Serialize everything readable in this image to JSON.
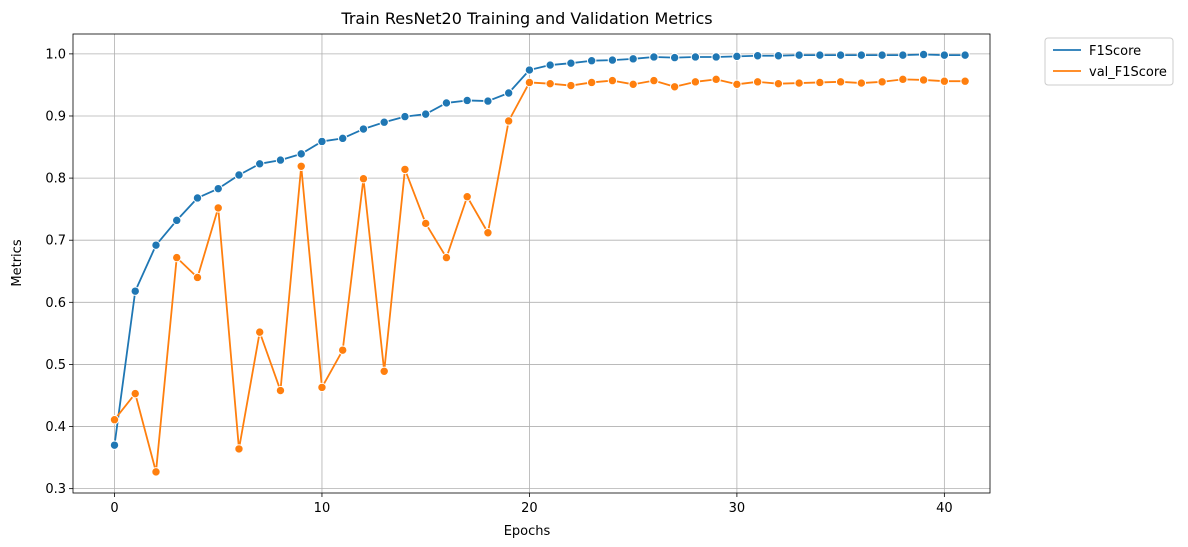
{
  "chart_data": {
    "type": "line",
    "title": "Train ResNet20 Training and Validation Metrics",
    "xlabel": "Epochs",
    "ylabel": "Metrics",
    "xlim": [
      -2,
      42.2
    ],
    "ylim": [
      0.293,
      1.032
    ],
    "xticks": [
      0,
      10,
      20,
      30,
      40
    ],
    "yticks": [
      0.3,
      0.4,
      0.5,
      0.6,
      0.7,
      0.8,
      0.9,
      1.0
    ],
    "grid": true,
    "legend_position": "outside-top-right",
    "x": [
      0,
      1,
      2,
      3,
      4,
      5,
      6,
      7,
      8,
      9,
      10,
      11,
      12,
      13,
      14,
      15,
      16,
      17,
      18,
      19,
      20,
      21,
      22,
      23,
      24,
      25,
      26,
      27,
      28,
      29,
      30,
      31,
      32,
      33,
      34,
      35,
      36,
      37,
      38,
      39,
      40,
      41
    ],
    "series": [
      {
        "name": "F1Score",
        "color": "#1f77b4",
        "marker": "circle",
        "values": [
          0.37,
          0.618,
          0.692,
          0.732,
          0.768,
          0.783,
          0.805,
          0.823,
          0.829,
          0.839,
          0.859,
          0.864,
          0.879,
          0.89,
          0.899,
          0.903,
          0.921,
          0.925,
          0.924,
          0.937,
          0.974,
          0.982,
          0.985,
          0.989,
          0.99,
          0.992,
          0.995,
          0.994,
          0.995,
          0.995,
          0.996,
          0.997,
          0.997,
          0.998,
          0.998,
          0.998,
          0.998,
          0.998,
          0.998,
          0.999,
          0.998,
          0.998
        ]
      },
      {
        "name": "val_F1Score",
        "color": "#ff7f0e",
        "marker": "circle",
        "values": [
          0.411,
          0.453,
          0.327,
          0.672,
          0.64,
          0.752,
          0.364,
          0.552,
          0.458,
          0.819,
          0.463,
          0.523,
          0.799,
          0.489,
          0.814,
          0.727,
          0.672,
          0.77,
          0.712,
          0.892,
          0.954,
          0.952,
          0.949,
          0.954,
          0.957,
          0.951,
          0.957,
          0.947,
          0.955,
          0.959,
          0.951,
          0.955,
          0.952,
          0.953,
          0.954,
          0.955,
          0.953,
          0.955,
          0.959,
          0.958,
          0.956,
          0.956
        ]
      }
    ]
  }
}
